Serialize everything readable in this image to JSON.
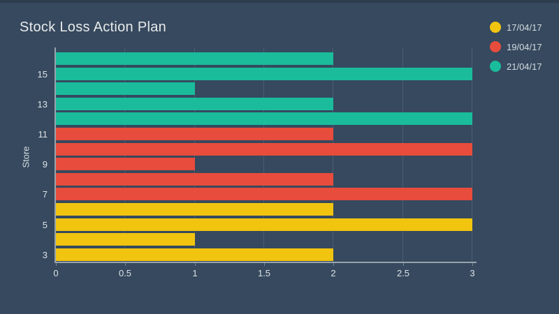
{
  "title": "Stock Loss Action Plan",
  "colors": {
    "background": "#36495E",
    "grid": "#4C5D72",
    "axis_line": "#98A4AE",
    "text": "#DDE2E7",
    "title_text": "#E9EBEC",
    "series": {
      "17/04/17": "#F1C40F",
      "19/04/17": "#E74C3C",
      "21/04/17": "#1ABC9C"
    }
  },
  "legend": {
    "position": "top-right",
    "items": [
      {
        "label": "17/04/17",
        "color": "#F1C40F"
      },
      {
        "label": "19/04/17",
        "color": "#E74C3C"
      },
      {
        "label": "21/04/17",
        "color": "#1ABC9C"
      }
    ]
  },
  "chart_data": {
    "type": "bar",
    "orientation": "horizontal",
    "title": "Stock Loss Action Plan",
    "xlabel": "",
    "ylabel": "Store",
    "xlim": [
      0,
      3
    ],
    "x_ticks": [
      "0",
      "0.5",
      "1",
      "1.5",
      "2",
      "2.5",
      "3"
    ],
    "x_tick_values": [
      0,
      0.5,
      1,
      1.5,
      2,
      2.5,
      3
    ],
    "y_tick_labels": [
      "15",
      "13",
      "11",
      "9",
      "7",
      "5",
      "3"
    ],
    "grid": true,
    "legend_position": "top-right",
    "series_order": [
      "17/04/17",
      "19/04/17",
      "21/04/17"
    ],
    "bars_top_to_bottom": [
      {
        "series": "21/04/17",
        "value": 2,
        "tick": ""
      },
      {
        "series": "21/04/17",
        "value": 3,
        "tick": "15"
      },
      {
        "series": "21/04/17",
        "value": 1,
        "tick": ""
      },
      {
        "series": "21/04/17",
        "value": 2,
        "tick": "13"
      },
      {
        "series": "21/04/17",
        "value": 3,
        "tick": ""
      },
      {
        "series": "19/04/17",
        "value": 2,
        "tick": "11"
      },
      {
        "series": "19/04/17",
        "value": 3,
        "tick": ""
      },
      {
        "series": "19/04/17",
        "value": 1,
        "tick": "9"
      },
      {
        "series": "19/04/17",
        "value": 2,
        "tick": ""
      },
      {
        "series": "19/04/17",
        "value": 3,
        "tick": "7"
      },
      {
        "series": "17/04/17",
        "value": 2,
        "tick": ""
      },
      {
        "series": "17/04/17",
        "value": 3,
        "tick": "5"
      },
      {
        "series": "17/04/17",
        "value": 1,
        "tick": ""
      },
      {
        "series": "17/04/17",
        "value": 2,
        "tick": "3"
      }
    ]
  }
}
